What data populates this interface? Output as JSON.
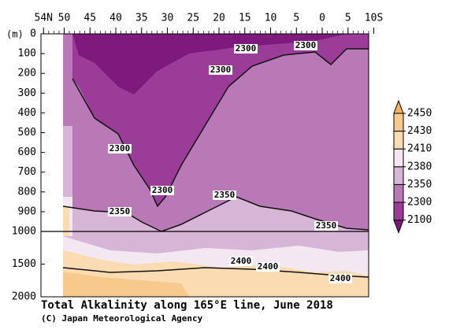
{
  "chart_data": {
    "type": "contour",
    "title": "Total Alkalinity along 165°E line, June 2018",
    "credit": "(C) Japan Meteorological Agency",
    "ylabel": "(m)",
    "xlim": [
      54.5,
      -9
    ],
    "xticks": [
      {
        "value": 54,
        "label": "54N"
      },
      50,
      45,
      40,
      35,
      30,
      25,
      20,
      15,
      10,
      5,
      0,
      {
        "value": -5,
        "label": "5"
      },
      {
        "value": -10,
        "label": "10S"
      }
    ],
    "ylim": [
      0,
      2000
    ],
    "yticks": [
      0,
      100,
      200,
      300,
      400,
      500,
      600,
      700,
      800,
      900,
      1000,
      1500,
      2000
    ],
    "colorbar": {
      "levels": [
        2100,
        2300,
        2350,
        2380,
        2410,
        2430,
        2450
      ],
      "colors": [
        "#7e1a7e",
        "#9b3d98",
        "#b879b6",
        "#d7b5d6",
        "#f3e8f1",
        "#fbdcb2",
        "#f8c98c",
        "#f3b45e"
      ]
    },
    "contour_labels": [
      2300,
      2300,
      2300,
      2300,
      2300,
      2350,
      2350,
      2350,
      2400,
      2400,
      2400
    ]
  }
}
